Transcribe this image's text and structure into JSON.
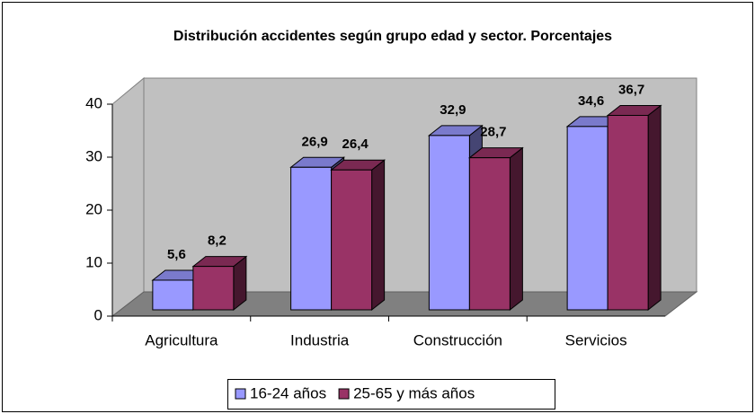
{
  "chart_data": {
    "type": "bar3d",
    "title": "Distribución accidentes según grupo edad y sector. Porcentajes",
    "categories": [
      "Agricultura",
      "Industria",
      "Construcción",
      "Servicios"
    ],
    "series": [
      {
        "name": "16-24 años",
        "color": "#9999ff",
        "values": [
          5.6,
          26.9,
          32.9,
          34.6
        ],
        "value_labels": [
          "5,6",
          "26,9",
          "32,9",
          "34,6"
        ]
      },
      {
        "name": "25-65 y más años",
        "color": "#993366",
        "values": [
          8.2,
          26.4,
          28.7,
          36.7
        ],
        "value_labels": [
          "8,2",
          "26,4",
          "28,7",
          "36,7"
        ]
      }
    ],
    "ylim": [
      0,
      40
    ],
    "yticks": [
      0,
      10,
      20,
      30,
      40
    ],
    "legend": "bottom"
  }
}
